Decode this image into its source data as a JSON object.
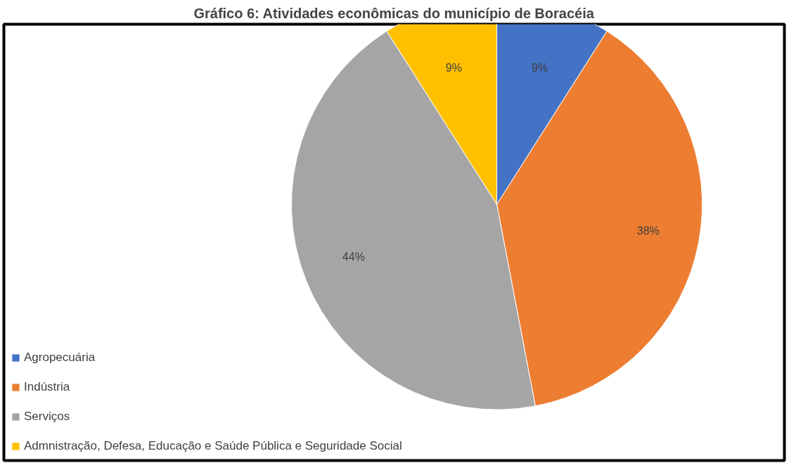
{
  "chart_data": {
    "type": "pie",
    "title": "Gráfico 6: Atividades econômicas do município de Boracéia",
    "categories": [
      "Agropecuária",
      "Indústria",
      "Serviços",
      "Admnistração, Defesa, Educação e Saúde Pública e Seguridade Social"
    ],
    "values": [
      9,
      38,
      44,
      9
    ],
    "colors": [
      "#4472c4",
      "#ed7d31",
      "#a5a5a5",
      "#ffc000"
    ],
    "value_labels": [
      "9%",
      "38%",
      "44%",
      "9%"
    ],
    "legend": "bottom left"
  }
}
